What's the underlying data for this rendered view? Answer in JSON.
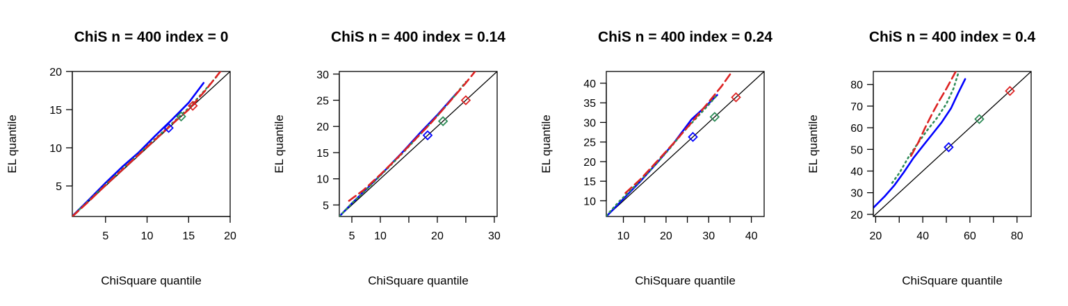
{
  "chart_data": [
    {
      "type": "line",
      "title": "ChiS n = 400 index = 0",
      "xlabel": "ChiSquare quantile",
      "ylabel": "EL quantile",
      "xlim": [
        1,
        20
      ],
      "ylim": [
        1,
        20
      ],
      "xticks": [
        5,
        10,
        15,
        20
      ],
      "yticks": [
        5,
        10,
        15,
        20
      ],
      "series": [
        {
          "color": "#0000ff",
          "dash": "solid",
          "x": [
            1,
            3,
            5,
            7,
            9,
            11,
            13,
            15,
            16.8
          ],
          "y": [
            1.05,
            3.2,
            5.4,
            7.5,
            9.4,
            11.6,
            13.7,
            15.9,
            18.5
          ]
        },
        {
          "color": "#2e8b57",
          "dash": "dot",
          "x": [
            1,
            3,
            5,
            7,
            9,
            11,
            13,
            15,
            17,
            18.5
          ],
          "y": [
            1.05,
            3.1,
            5.2,
            7.2,
            9.2,
            11.2,
            13.2,
            15.2,
            17.6,
            19.5
          ]
        },
        {
          "color": "#dd2222",
          "dash": "dash",
          "x": [
            1,
            3,
            5,
            7,
            9,
            11,
            13,
            15,
            17,
            19.2
          ],
          "y": [
            1.0,
            3.0,
            5.1,
            7.1,
            9.1,
            11.1,
            13.1,
            15.0,
            17.5,
            20.5
          ]
        }
      ],
      "markers": [
        {
          "color": "#0000ff",
          "x": 12.6,
          "y": 12.6
        },
        {
          "color": "#2e8b57",
          "x": 14.1,
          "y": 14.1
        },
        {
          "color": "#dd2222",
          "x": 15.5,
          "y": 15.5
        }
      ]
    },
    {
      "type": "line",
      "title": "ChiS n = 400 index = 0.14",
      "xlabel": "ChiSquare quantile",
      "ylabel": "EL quantile",
      "xlim": [
        2.8,
        30.5
      ],
      "ylim": [
        2.8,
        30.5
      ],
      "xticks": [
        5,
        10,
        15,
        20,
        25,
        30
      ],
      "xticklabels": [
        "5",
        "10",
        "",
        "20",
        "",
        "30"
      ],
      "yticks": [
        5,
        10,
        15,
        20,
        25,
        30
      ],
      "series": [
        {
          "color": "#0000ff",
          "dash": "solid",
          "x": [
            2.8,
            5,
            8,
            11,
            14,
            17,
            20,
            23.5
          ],
          "y": [
            2.8,
            5.3,
            8.5,
            11.8,
            15.2,
            18.8,
            22.2,
            26.5
          ]
        },
        {
          "color": "#2e8b57",
          "dash": "dot",
          "x": [
            2.8,
            5,
            8,
            11,
            14,
            17,
            20,
            23,
            25
          ],
          "y": [
            2.8,
            5.3,
            8.4,
            11.7,
            15.0,
            18.5,
            22.0,
            25.8,
            28.5
          ]
        },
        {
          "color": "#dd2222",
          "dash": "dash",
          "x": [
            4.5,
            7,
            10,
            13,
            16,
            19,
            22,
            25,
            27
          ],
          "y": [
            5.8,
            7.8,
            10.8,
            14.0,
            17.4,
            20.8,
            24.5,
            28.3,
            31.0
          ]
        }
      ],
      "markers": [
        {
          "color": "#0000ff",
          "x": 18.3,
          "y": 18.3
        },
        {
          "color": "#2e8b57",
          "x": 21.0,
          "y": 21.0
        },
        {
          "color": "#dd2222",
          "x": 25.0,
          "y": 25.0
        }
      ]
    },
    {
      "type": "line",
      "title": "ChiS n = 400 index = 0.24",
      "xlabel": "ChiSquare quantile",
      "ylabel": "EL quantile",
      "xlim": [
        6,
        43
      ],
      "ylim": [
        6,
        43
      ],
      "xticks": [
        10,
        15,
        20,
        25,
        30,
        35,
        40
      ],
      "xticklabels": [
        "10",
        "",
        "20",
        "",
        "30",
        "",
        "40"
      ],
      "yticks": [
        10,
        15,
        20,
        25,
        30,
        35,
        40
      ],
      "series": [
        {
          "color": "#0000ff",
          "dash": "solid",
          "x": [
            6,
            10,
            14,
            18,
            22,
            26,
            29,
            32
          ],
          "y": [
            6,
            10.5,
            15.0,
            19.8,
            25.0,
            30.8,
            33.8,
            37.0
          ]
        },
        {
          "color": "#2e8b57",
          "dash": "dot",
          "x": [
            6,
            9,
            12,
            15,
            18,
            21,
            24,
            27,
            30,
            32
          ],
          "y": [
            6.2,
            9.8,
            13.0,
            16.3,
            19.8,
            23.5,
            27.5,
            31.0,
            34.5,
            37.0
          ]
        },
        {
          "color": "#dd2222",
          "dash": "dash",
          "x": [
            10.5,
            14,
            18,
            22,
            26,
            30,
            33,
            35.5
          ],
          "y": [
            12.0,
            15.5,
            20.2,
            25.0,
            30.0,
            35.2,
            39.2,
            43.0
          ]
        }
      ],
      "markers": [
        {
          "color": "#0000ff",
          "x": 26.3,
          "y": 26.3
        },
        {
          "color": "#2e8b57",
          "x": 31.4,
          "y": 31.4
        },
        {
          "color": "#dd2222",
          "x": 36.4,
          "y": 36.4
        }
      ]
    },
    {
      "type": "line",
      "title": "ChiS n = 400 index = 0.4",
      "xlabel": "ChiSquare quantile",
      "ylabel": "EL quantile",
      "xlim": [
        19,
        86
      ],
      "ylim": [
        19,
        86
      ],
      "xticks": [
        20,
        30,
        40,
        50,
        60,
        70,
        80
      ],
      "xticklabels": [
        "20",
        "",
        "40",
        "",
        "60",
        "",
        "80"
      ],
      "yticks": [
        20,
        30,
        40,
        50,
        60,
        70,
        80
      ],
      "series": [
        {
          "color": "#0000ff",
          "dash": "solid",
          "x": [
            19,
            24,
            28,
            32,
            36,
            40,
            44,
            48,
            52,
            55,
            58
          ],
          "y": [
            23,
            28.5,
            33.5,
            39.5,
            46.0,
            51.5,
            57.0,
            62.5,
            69.0,
            76.0,
            82.5
          ]
        },
        {
          "color": "#2e8b57",
          "dash": "dot",
          "x": [
            27,
            30,
            34,
            38,
            42,
            46,
            50,
            53,
            55
          ],
          "y": [
            34.5,
            39.0,
            46.5,
            53.0,
            59.0,
            64.5,
            71.0,
            78.0,
            85.0
          ]
        },
        {
          "color": "#dd2222",
          "dash": "dash",
          "x": [
            35,
            38,
            41,
            44,
            47,
            50,
            52,
            54
          ],
          "y": [
            47.0,
            53.0,
            60.0,
            66.5,
            72.5,
            78.0,
            82.0,
            86.0
          ]
        }
      ],
      "markers": [
        {
          "color": "#0000ff",
          "x": 51.0,
          "y": 51.0
        },
        {
          "color": "#2e8b57",
          "x": 64.0,
          "y": 64.0
        },
        {
          "color": "#dd2222",
          "x": 77.0,
          "y": 77.0
        }
      ]
    }
  ]
}
